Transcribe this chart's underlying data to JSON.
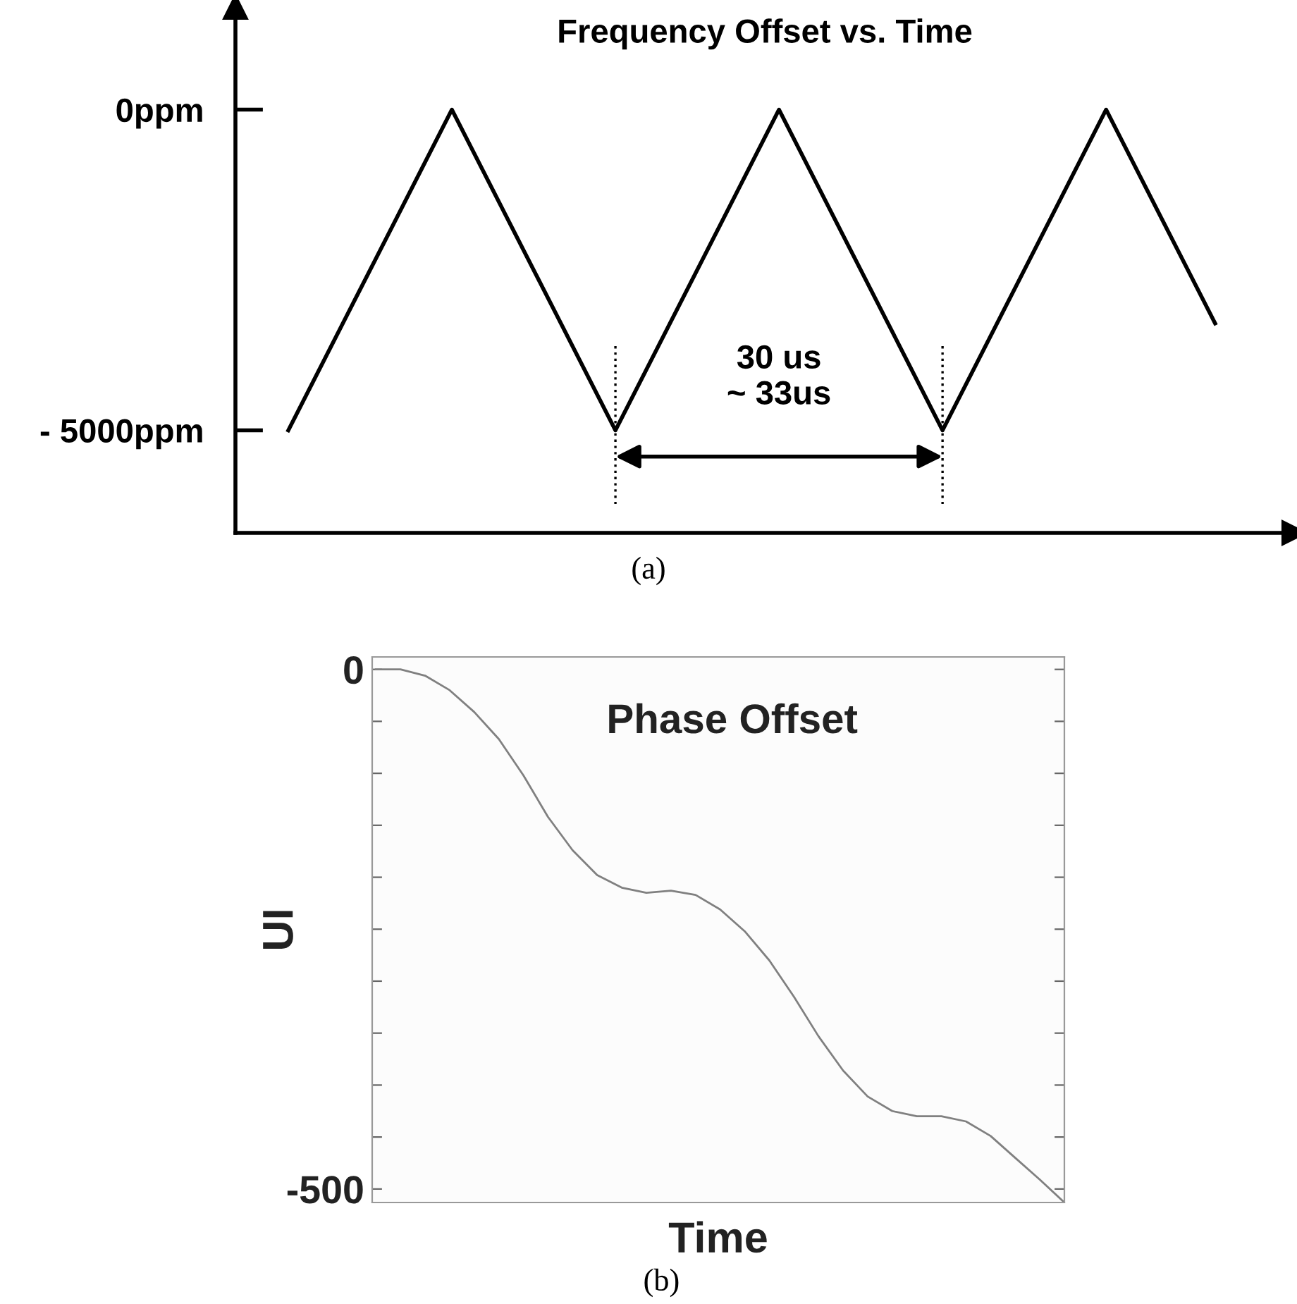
{
  "chart_data": [
    {
      "type": "line",
      "title": "Frequency Offset vs. Time",
      "categories": [
        null,
        null,
        null,
        null,
        null,
        null,
        null,
        null,
        null,
        null,
        null,
        null,
        null,
        null,
        null,
        null,
        null,
        null
      ],
      "series": [
        {
          "color": "#000000",
          "values": [
            -5000,
            -3333,
            -1667,
            0,
            -1667,
            -3333,
            -5000,
            -3333,
            -1667,
            0,
            -1667,
            -3333,
            -5000,
            -3333,
            -1667,
            0,
            -1667,
            -3333
          ]
        }
      ],
      "ylim": [
        -6600,
        1600
      ],
      "yticks": [
        {
          "value": 0,
          "label": "0ppm"
        },
        {
          "value": -5000,
          "label": "- 5000ppm"
        }
      ],
      "annotations": [
        "30 us\n~ 33us",
        "(a)"
      ],
      "grid": false,
      "legend": false,
      "marker": "none",
      "line_style": "solid"
    },
    {
      "type": "line",
      "title": "Phase Offset",
      "xlabel": "Time",
      "ylabel": "UI",
      "categories": [
        null,
        null,
        null,
        null,
        null,
        null,
        null,
        null,
        null,
        null,
        null,
        null,
        null,
        null,
        null,
        null,
        null,
        null,
        null,
        null,
        null,
        null,
        null,
        null,
        null,
        null,
        null,
        null,
        null
      ],
      "series": [
        {
          "color": "#808080",
          "values": [
            0,
            0,
            -6,
            -20,
            -41,
            -67,
            -102,
            -142,
            -174,
            -198,
            -210,
            -215,
            -213,
            -217,
            -231,
            -252,
            -280,
            -315,
            -353,
            -386,
            -411,
            -425,
            -430,
            -430,
            -435,
            -449,
            -470,
            -491,
            -513
          ]
        }
      ],
      "ylim": [
        -513,
        12
      ],
      "yticks": [
        0,
        {
          "value": -50,
          "label": null
        },
        {
          "value": -100,
          "label": null
        },
        {
          "value": -150,
          "label": null
        },
        {
          "value": -200,
          "label": null
        },
        {
          "value": -250,
          "label": null
        },
        {
          "value": -300,
          "label": null
        },
        {
          "value": -350,
          "label": null
        },
        {
          "value": -400,
          "label": null
        },
        {
          "value": -450,
          "label": null
        },
        -500
      ],
      "annotations": [
        "(b)"
      ],
      "grid": false,
      "legend": false,
      "marker": "none",
      "line_style": "solid"
    }
  ]
}
